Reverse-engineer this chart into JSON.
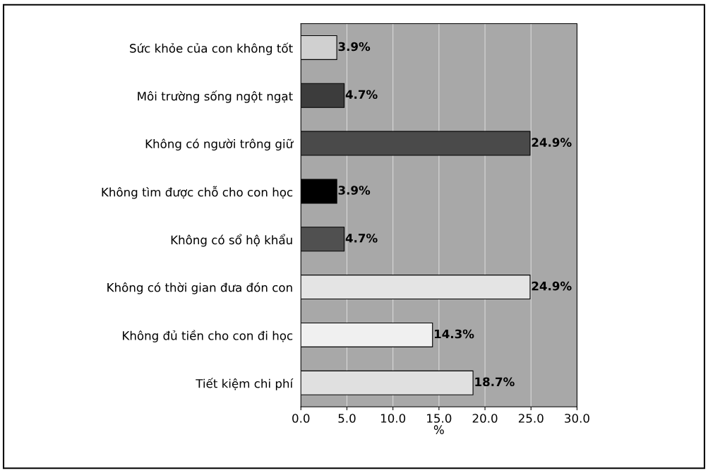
{
  "chart_data": {
    "type": "bar",
    "orientation": "horizontal",
    "xlabel": "%",
    "categories": [
      "Sức khỏe của con không tốt",
      "Môi trường sống ngột ngạt",
      "Không có người trông giữ",
      "Không tìm được chỗ cho con học",
      "Không có sổ hộ khẩu",
      "Không có thời gian đưa đón con",
      "Không đủ tiền cho con đi học",
      "Tiết kiệm chi phí"
    ],
    "values": [
      3.9,
      4.7,
      24.9,
      3.9,
      4.7,
      24.9,
      14.3,
      18.7
    ],
    "value_labels": [
      "3.9%",
      "4.7%",
      "24.9%",
      "3.9%",
      "4.7%",
      "24.9%",
      "14.3%",
      "18.7%"
    ],
    "colors": [
      "#d0d0d0",
      "#3c3c3c",
      "#4a4a4a",
      "#000000",
      "#505050",
      "#e4e4e4",
      "#f0f0f0",
      "#e0e0e0"
    ],
    "xlim": [
      0,
      30
    ],
    "xticks": [
      {
        "value": 0,
        "label": "0.0"
      },
      {
        "value": 5,
        "label": "5.0"
      },
      {
        "value": 10,
        "label": "10.0"
      },
      {
        "value": 15,
        "label": "15.0"
      },
      {
        "value": 20,
        "label": "20.0"
      },
      {
        "value": 25,
        "label": "25.0"
      },
      {
        "value": 30,
        "label": "30.0"
      }
    ],
    "grid": "x",
    "legend": false
  }
}
